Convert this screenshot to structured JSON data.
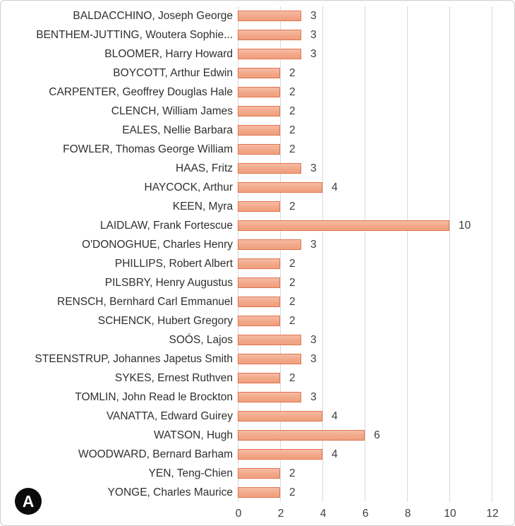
{
  "panel": {
    "label": "A"
  },
  "chart_data": {
    "type": "bar",
    "orientation": "horizontal",
    "title": "",
    "xlabel": "",
    "ylabel": "",
    "categories": [
      "BALDACCHINO, Joseph George",
      "BENTHEM-JUTTING, Woutera Sophie...",
      "BLOOMER, Harry Howard",
      "BOYCOTT, Arthur Edwin",
      "CARPENTER, Geoffrey Douglas Hale",
      "CLENCH, William James",
      "EALES, Nellie Barbara",
      "FOWLER, Thomas George William",
      "HAAS, Fritz",
      "HAYCOCK, Arthur",
      "KEEN, Myra",
      "LAIDLAW, Frank Fortescue",
      "O'DONOGHUE, Charles Henry",
      "PHILLIPS, Robert Albert",
      "PILSBRY, Henry Augustus",
      "RENSCH, Bernhard Carl Emmanuel",
      "SCHENCK, Hubert Gregory",
      "SOÓS, Lajos",
      "STEENSTRUP, Johannes Japetus Smith",
      "SYKES, Ernest Ruthven",
      "TOMLIN, John Read le Brockton",
      "VANATTA, Edward Guirey",
      "WATSON, Hugh",
      "WOODWARD, Bernard Barham",
      "YEN, Teng-Chien",
      "YONGE, Charles Maurice"
    ],
    "values": [
      3,
      3,
      3,
      2,
      2,
      2,
      2,
      2,
      3,
      4,
      2,
      10,
      3,
      2,
      2,
      2,
      2,
      3,
      3,
      2,
      3,
      4,
      6,
      4,
      2,
      2
    ],
    "x_ticks": [
      0,
      2,
      4,
      6,
      8,
      10,
      12
    ],
    "xlim": [
      0,
      12
    ],
    "grid": "vertical",
    "data_labels": true,
    "legend": "none",
    "colors": {
      "bar_fill_top": "#f6bca6",
      "bar_fill_mid": "#f2a888",
      "bar_fill_bottom": "#efa07f",
      "bar_border": "#e2734e",
      "gridline": "#d9d9d9",
      "category_text": "#2f2f2f",
      "value_text": "#3c3c3c",
      "badge_background": "#0b0b0b",
      "badge_text": "#ffffff"
    }
  }
}
